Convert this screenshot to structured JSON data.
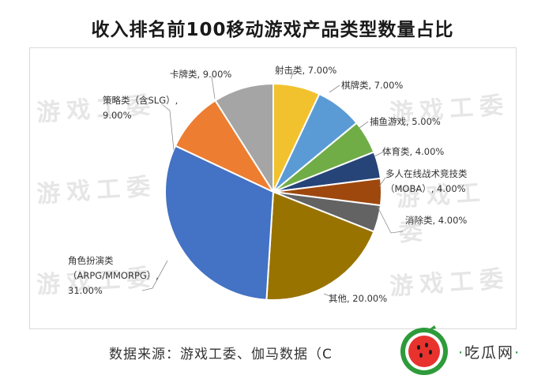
{
  "title": "收入排名前100移动游戏产品类型数量占比",
  "watermark": "游戏工委",
  "source": "数据来源：游戏工委、伽马数据（C",
  "logo_text": "吃瓜网",
  "chart_data": {
    "type": "pie",
    "title": "收入排名前100移动游戏产品类型数量占比",
    "slices": [
      {
        "name": "射击类",
        "value": 7.0,
        "label": "射击类, 7.00%",
        "color": "#F2C12E"
      },
      {
        "name": "棋牌类",
        "value": 7.0,
        "label": "棋牌类, 7.00%",
        "color": "#5B9BD5"
      },
      {
        "name": "捕鱼游戏",
        "value": 5.0,
        "label": "捕鱼游戏, 5.00%",
        "color": "#70AD47"
      },
      {
        "name": "体育类",
        "value": 4.0,
        "label": "体育类, 4.00%",
        "color": "#264478"
      },
      {
        "name": "多人在线战术竞技类（MOBA）",
        "value": 4.0,
        "label": "多人在线战术竞技类\n（MOBA）, 4.00%",
        "color": "#9E480E"
      },
      {
        "name": "消除类",
        "value": 4.0,
        "label": "消除类, 4.00%",
        "color": "#636363"
      },
      {
        "name": "其他",
        "value": 20.0,
        "label": "其他, 20.00%",
        "color": "#997300"
      },
      {
        "name": "角色扮演类（ARPG/MMORPG）",
        "value": 31.0,
        "label": "角色扮演类\n（ARPG/MMORPG）,\n31.00%",
        "color": "#4472C4"
      },
      {
        "name": "策略类（含SLG）",
        "value": 9.0,
        "label": "策略类（含SLG）,\n9.00%",
        "color": "#ED7D31"
      },
      {
        "name": "卡牌类",
        "value": 9.0,
        "label": "卡牌类, 9.00%",
        "color": "#A5A5A5"
      }
    ]
  }
}
